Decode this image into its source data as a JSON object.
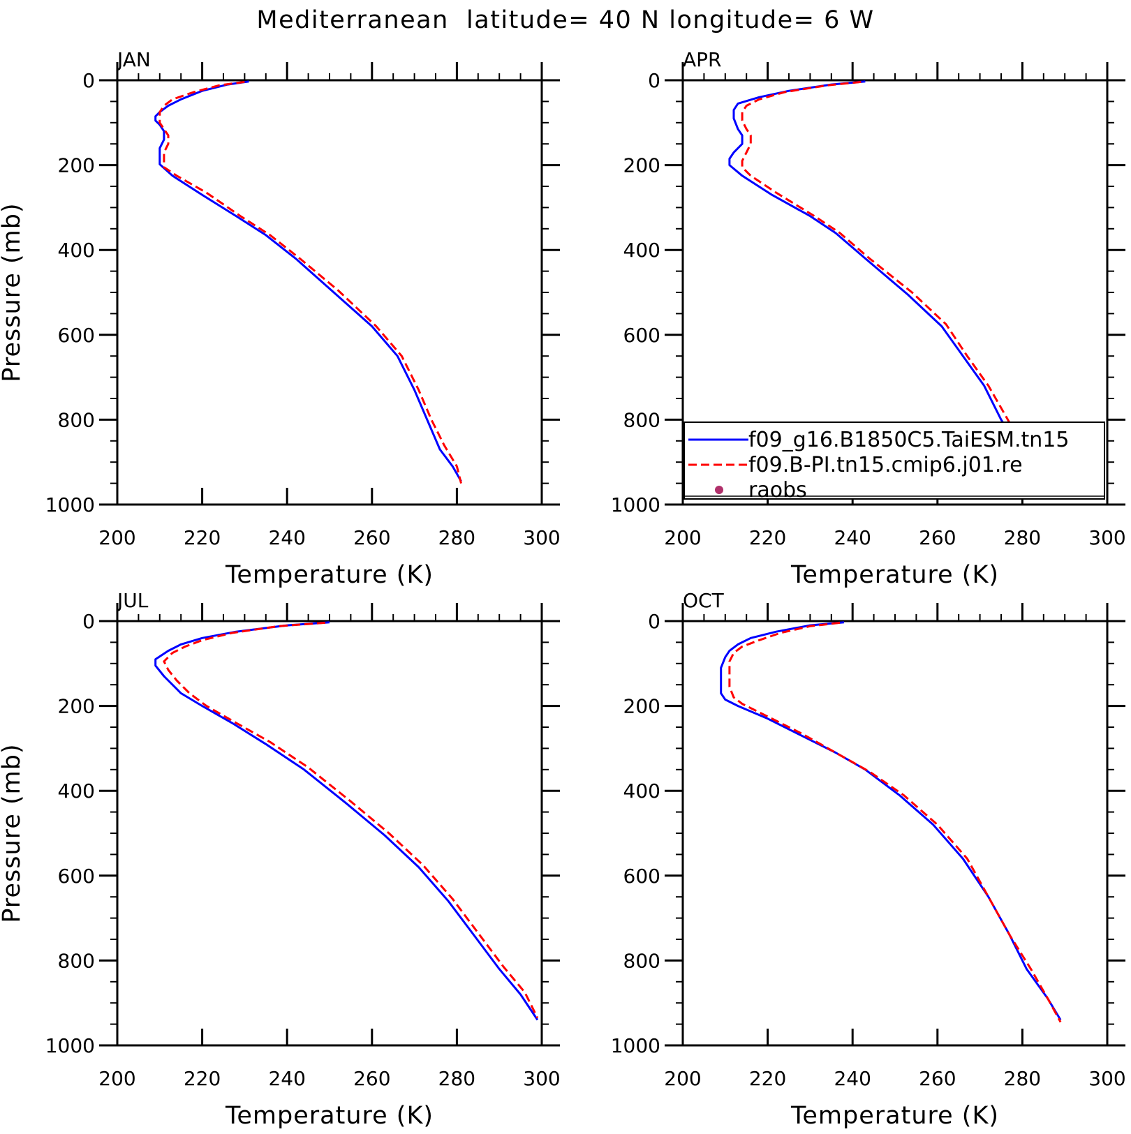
{
  "figure": {
    "title": "Mediterranean  latitude= 40 N longitude= 6 W"
  },
  "legend": {
    "placement": "lower-right of APR panel",
    "entries": [
      {
        "label": "f09_g16.B1850C5.TaiESM.tn15",
        "style": "solid line",
        "color": "#0000ff"
      },
      {
        "label": "f09.B-PI.tn15.cmip6.j01.re",
        "style": "dashed line",
        "color": "#ff0000"
      },
      {
        "label": "raobs",
        "style": "dot",
        "color": "#b0306a"
      }
    ]
  },
  "chart_data": [
    {
      "type": "line",
      "panel_label": "JAN",
      "xlabel": "Temperature (K)",
      "ylabel": "Pressure (mb)",
      "xlim": [
        200,
        300
      ],
      "ylim": [
        1000,
        0
      ],
      "xticks": [
        200,
        220,
        240,
        260,
        280,
        300
      ],
      "yticks": [
        0,
        200,
        400,
        600,
        800,
        1000
      ],
      "series": [
        {
          "name": "f09_g16.B1850C5.TaiESM.tn15",
          "color": "#0000ff",
          "dash": false,
          "points": [
            [
              231,
              3
            ],
            [
              226,
              10
            ],
            [
              220,
              25
            ],
            [
              215,
              45
            ],
            [
              212,
              60
            ],
            [
              210,
              75
            ],
            [
              209,
              85
            ],
            [
              209,
              95
            ],
            [
              210,
              105
            ],
            [
              211,
              120
            ],
            [
              211,
              140
            ],
            [
              210,
              160
            ],
            [
              210,
              180
            ],
            [
              210,
              198
            ],
            [
              213,
              225
            ],
            [
              220,
              270
            ],
            [
              228,
              320
            ],
            [
              235,
              365
            ],
            [
              242,
              420
            ],
            [
              251,
              500
            ],
            [
              260,
              580
            ],
            [
              266,
              650
            ],
            [
              270,
              730
            ],
            [
              273,
              800
            ],
            [
              276,
              870
            ],
            [
              279,
              910
            ],
            [
              281,
              945
            ]
          ]
        },
        {
          "name": "f09.B-PI.tn15.cmip6.j01.re",
          "color": "#ff0000",
          "dash": true,
          "points": [
            [
              230,
              4
            ],
            [
              224,
              12
            ],
            [
              218,
              28
            ],
            [
              213,
              45
            ],
            [
              211,
              60
            ],
            [
              210,
              75
            ],
            [
              210,
              85
            ],
            [
              210,
              100
            ],
            [
              211,
              115
            ],
            [
              212,
              130
            ],
            [
              212,
              150
            ],
            [
              211,
              170
            ],
            [
              211,
              190
            ],
            [
              211,
              205
            ],
            [
              214,
              225
            ],
            [
              221,
              265
            ],
            [
              229,
              320
            ],
            [
              236,
              365
            ],
            [
              243,
              420
            ],
            [
              252,
              495
            ],
            [
              261,
              580
            ],
            [
              267,
              650
            ],
            [
              271,
              730
            ],
            [
              274,
              800
            ],
            [
              277,
              860
            ],
            [
              280,
              910
            ],
            [
              281,
              950
            ]
          ]
        }
      ]
    },
    {
      "type": "line",
      "panel_label": "APR",
      "xlabel": "Temperature (K)",
      "ylabel": "",
      "xlim": [
        200,
        300
      ],
      "ylim": [
        1000,
        0
      ],
      "xticks": [
        200,
        220,
        240,
        260,
        280,
        300
      ],
      "yticks": [
        0,
        200,
        400,
        600,
        800,
        1000
      ],
      "series": [
        {
          "name": "f09_g16.B1850C5.TaiESM.tn15",
          "color": "#0000ff",
          "dash": false,
          "points": [
            [
              243,
              3
            ],
            [
              235,
              10
            ],
            [
              225,
              25
            ],
            [
              218,
              40
            ],
            [
              213,
              55
            ],
            [
              212,
              70
            ],
            [
              212,
              90
            ],
            [
              213,
              115
            ],
            [
              214,
              130
            ],
            [
              214,
              150
            ],
            [
              212,
              170
            ],
            [
              211,
              185
            ],
            [
              211,
              200
            ],
            [
              214,
              225
            ],
            [
              221,
              270
            ],
            [
              230,
              320
            ],
            [
              236,
              360
            ],
            [
              243,
              420
            ],
            [
              253,
              505
            ],
            [
              261,
              580
            ],
            [
              266,
              650
            ],
            [
              271,
              720
            ],
            [
              275,
              800
            ],
            [
              279,
              860
            ],
            [
              283,
              910
            ],
            [
              286,
              945
            ]
          ]
        },
        {
          "name": "f09.B-PI.tn15.cmip6.j01.re",
          "color": "#ff0000",
          "dash": true,
          "points": [
            [
              242,
              4
            ],
            [
              234,
              12
            ],
            [
              224,
              28
            ],
            [
              218,
              45
            ],
            [
              215,
              60
            ],
            [
              214,
              75
            ],
            [
              214,
              95
            ],
            [
              215,
              115
            ],
            [
              216,
              130
            ],
            [
              216,
              150
            ],
            [
              215,
              170
            ],
            [
              214,
              190
            ],
            [
              214,
              205
            ],
            [
              216,
              225
            ],
            [
              222,
              265
            ],
            [
              231,
              320
            ],
            [
              237,
              360
            ],
            [
              244,
              420
            ],
            [
              254,
              500
            ],
            [
              262,
              575
            ],
            [
              267,
              650
            ],
            [
              272,
              720
            ],
            [
              276,
              790
            ],
            [
              280,
              860
            ],
            [
              284,
              910
            ],
            [
              287,
              950
            ]
          ]
        }
      ]
    },
    {
      "type": "line",
      "panel_label": "JUL",
      "xlabel": "Temperature (K)",
      "ylabel": "Pressure (mb)",
      "xlim": [
        200,
        300
      ],
      "ylim": [
        1000,
        0
      ],
      "xticks": [
        200,
        220,
        240,
        260,
        280,
        300
      ],
      "yticks": [
        0,
        200,
        400,
        600,
        800,
        1000
      ],
      "series": [
        {
          "name": "f09_g16.B1850C5.TaiESM.tn15",
          "color": "#0000ff",
          "dash": false,
          "points": [
            [
              250,
              3
            ],
            [
              240,
              10
            ],
            [
              228,
              25
            ],
            [
              220,
              40
            ],
            [
              215,
              55
            ],
            [
              212,
              70
            ],
            [
              209,
              90
            ],
            [
              209,
              105
            ],
            [
              211,
              130
            ],
            [
              215,
              170
            ],
            [
              220,
              200
            ],
            [
              227,
              240
            ],
            [
              235,
              290
            ],
            [
              244,
              350
            ],
            [
              254,
              430
            ],
            [
              263,
              505
            ],
            [
              271,
              580
            ],
            [
              278,
              660
            ],
            [
              284,
              740
            ],
            [
              290,
              820
            ],
            [
              295,
              880
            ],
            [
              299,
              940
            ]
          ]
        },
        {
          "name": "f09.B-PI.tn15.cmip6.j01.re",
          "color": "#ff0000",
          "dash": true,
          "points": [
            [
              249,
              4
            ],
            [
              238,
              12
            ],
            [
              227,
              28
            ],
            [
              220,
              45
            ],
            [
              216,
              60
            ],
            [
              213,
              75
            ],
            [
              211,
              95
            ],
            [
              212,
              115
            ],
            [
              214,
              140
            ],
            [
              217,
              170
            ],
            [
              221,
              200
            ],
            [
              228,
              240
            ],
            [
              236,
              285
            ],
            [
              245,
              345
            ],
            [
              255,
              425
            ],
            [
              264,
              500
            ],
            [
              272,
              575
            ],
            [
              279,
              655
            ],
            [
              285,
              735
            ],
            [
              291,
              815
            ],
            [
              296,
              875
            ],
            [
              299,
              935
            ]
          ]
        }
      ]
    },
    {
      "type": "line",
      "panel_label": "OCT",
      "xlabel": "Temperature (K)",
      "ylabel": "",
      "xlim": [
        200,
        300
      ],
      "ylim": [
        1000,
        0
      ],
      "xticks": [
        200,
        220,
        240,
        260,
        280,
        300
      ],
      "yticks": [
        0,
        200,
        400,
        600,
        800,
        1000
      ],
      "series": [
        {
          "name": "f09_g16.B1850C5.TaiESM.tn15",
          "color": "#0000ff",
          "dash": false,
          "points": [
            [
              238,
              3
            ],
            [
              230,
              10
            ],
            [
              222,
              25
            ],
            [
              216,
              40
            ],
            [
              213,
              55
            ],
            [
              211,
              70
            ],
            [
              210,
              85
            ],
            [
              209,
              110
            ],
            [
              209,
              140
            ],
            [
              209,
              170
            ],
            [
              210,
              185
            ],
            [
              213,
              200
            ],
            [
              220,
              230
            ],
            [
              228,
              270
            ],
            [
              236,
              310
            ],
            [
              243,
              350
            ],
            [
              251,
              410
            ],
            [
              259,
              480
            ],
            [
              266,
              560
            ],
            [
              272,
              650
            ],
            [
              277,
              740
            ],
            [
              281,
              820
            ],
            [
              286,
              890
            ],
            [
              289,
              940
            ]
          ]
        },
        {
          "name": "f09.B-PI.tn15.cmip6.j01.re",
          "color": "#ff0000",
          "dash": true,
          "points": [
            [
              237,
              4
            ],
            [
              230,
              12
            ],
            [
              223,
              28
            ],
            [
              218,
              45
            ],
            [
              214,
              60
            ],
            [
              212,
              75
            ],
            [
              211,
              95
            ],
            [
              211,
              125
            ],
            [
              211,
              155
            ],
            [
              212,
              180
            ],
            [
              214,
              195
            ],
            [
              220,
              225
            ],
            [
              228,
              265
            ],
            [
              236,
              310
            ],
            [
              244,
              355
            ],
            [
              252,
              410
            ],
            [
              260,
              480
            ],
            [
              267,
              560
            ],
            [
              272,
              650
            ],
            [
              277,
              740
            ],
            [
              282,
              820
            ],
            [
              286,
              890
            ],
            [
              289,
              945
            ]
          ]
        }
      ]
    }
  ]
}
